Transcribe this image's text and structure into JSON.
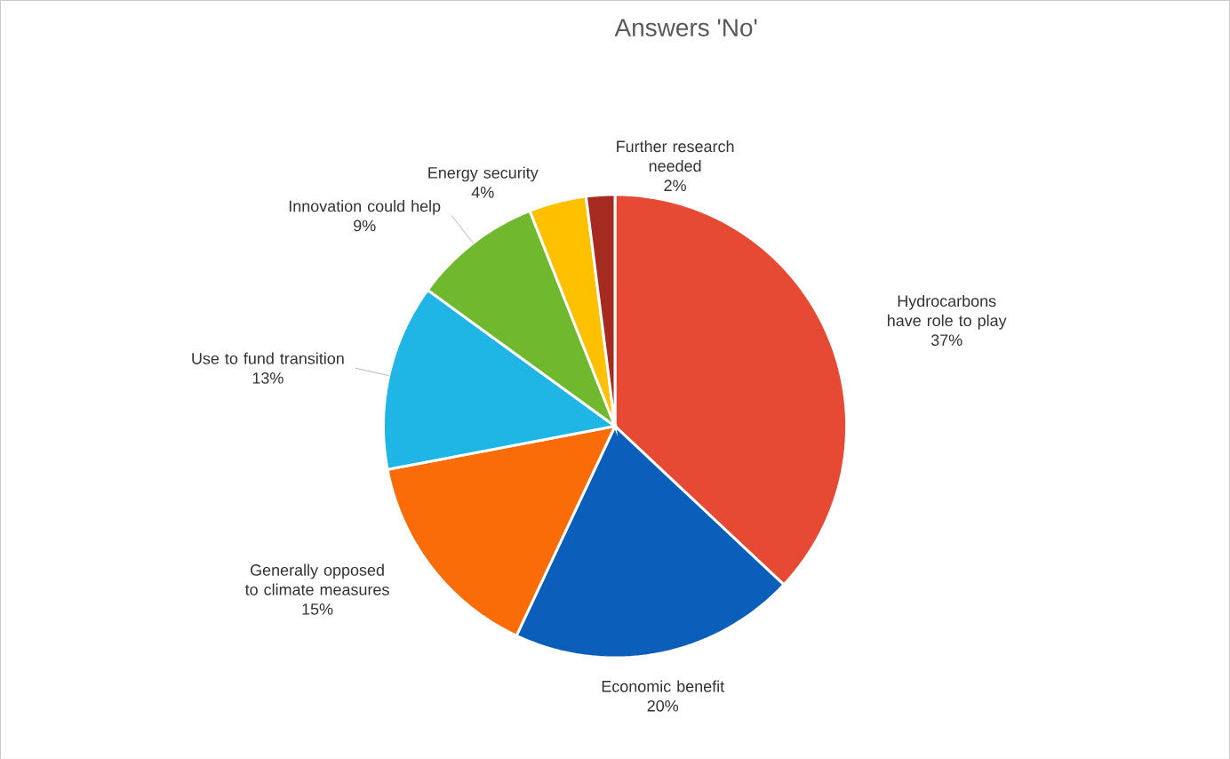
{
  "chart_data": {
    "type": "pie",
    "title": "Answers 'No'",
    "categories": [
      "Hydrocarbons have role to play",
      "Economic benefit",
      "Generally opposed to climate measures",
      "Use to fund transition",
      "Innovation could help",
      "Energy security",
      "Further research needed"
    ],
    "values": [
      37,
      20,
      15,
      13,
      9,
      4,
      2
    ],
    "value_labels": [
      "37%",
      "20%",
      "15%",
      "13%",
      "9%",
      "4%",
      "2%"
    ],
    "colors": [
      "#e64a35",
      "#0b5fba",
      "#f96c08",
      "#1fb6e5",
      "#70b82d",
      "#ffc000",
      "#a52a1f"
    ]
  }
}
